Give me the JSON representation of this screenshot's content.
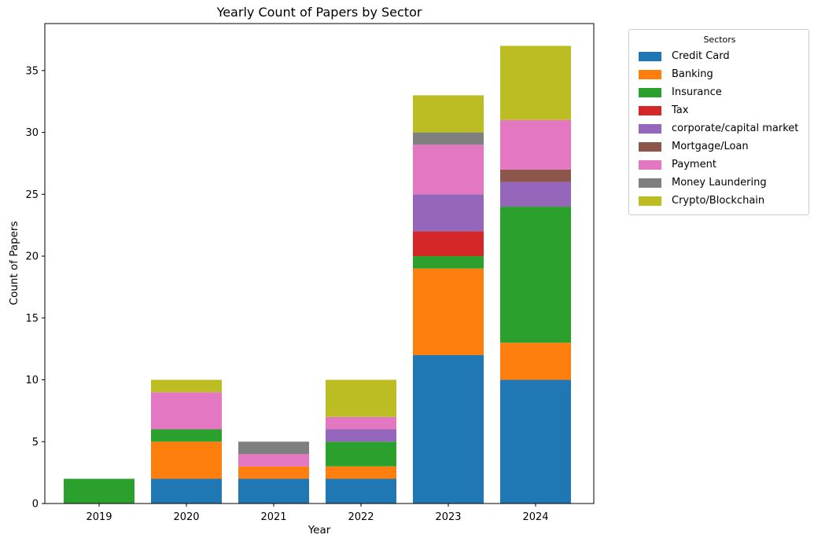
{
  "figure": {
    "background": "#ffffff"
  },
  "chart_data": {
    "type": "bar",
    "stacked": true,
    "title": "Yearly Count of Papers by Sector",
    "xlabel": "Year",
    "ylabel": "Count of Papers",
    "categories": [
      "2019",
      "2020",
      "2021",
      "2022",
      "2023",
      "2024"
    ],
    "yticks": [
      0,
      5,
      10,
      15,
      20,
      25,
      30,
      35
    ],
    "ylim": [
      0,
      38.8
    ],
    "grid": false,
    "legend": {
      "title": "Sectors",
      "position": "outside-right"
    },
    "series": [
      {
        "name": "Credit Card",
        "color": "#1f77b4",
        "values": [
          0,
          2,
          2,
          2,
          12,
          10
        ]
      },
      {
        "name": "Banking",
        "color": "#ff7f0e",
        "values": [
          0,
          3,
          1,
          1,
          7,
          3
        ]
      },
      {
        "name": "Insurance",
        "color": "#2ca02c",
        "values": [
          2,
          1,
          0,
          2,
          1,
          11
        ]
      },
      {
        "name": "Tax",
        "color": "#d62728",
        "values": [
          0,
          0,
          0,
          0,
          2,
          0
        ]
      },
      {
        "name": "corporate/capital market",
        "color": "#9467bd",
        "values": [
          0,
          0,
          0,
          1,
          3,
          2
        ]
      },
      {
        "name": "Mortgage/Loan",
        "color": "#8c564b",
        "values": [
          0,
          0,
          0,
          0,
          0,
          1
        ]
      },
      {
        "name": "Payment",
        "color": "#e377c2",
        "values": [
          0,
          3,
          1,
          1,
          4,
          4
        ]
      },
      {
        "name": "Money Laundering",
        "color": "#7f7f7f",
        "values": [
          0,
          0,
          1,
          0,
          1,
          0
        ]
      },
      {
        "name": "Crypto/Blockchain",
        "color": "#bcbd22",
        "values": [
          0,
          1,
          0,
          3,
          3,
          6
        ]
      }
    ],
    "totals_by_year": [
      2,
      10,
      5,
      10,
      33,
      37
    ]
  }
}
